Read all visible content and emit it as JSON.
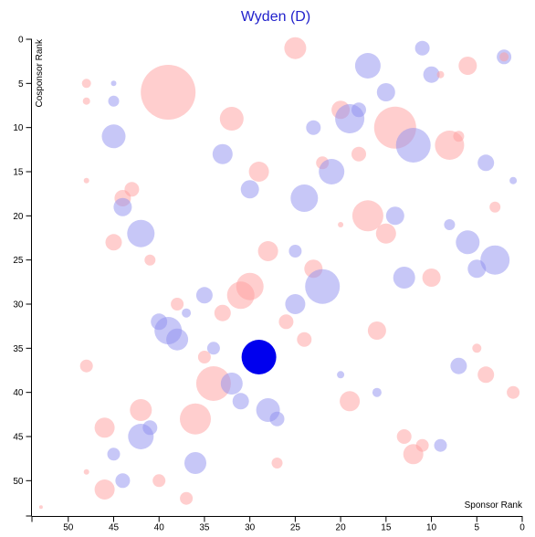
{
  "chart_data": {
    "type": "scatter",
    "title": "Wyden (D)",
    "xlabel": "Sponsor Rank",
    "ylabel": "Cosponsor Rank",
    "xlim": [
      54,
      0
    ],
    "ylim": [
      0,
      54
    ],
    "x_ticks": [
      50,
      45,
      40,
      35,
      30,
      25,
      20,
      15,
      10,
      5,
      0
    ],
    "y_ticks": [
      0,
      5,
      10,
      15,
      20,
      25,
      30,
      35,
      40,
      45,
      50
    ],
    "grid": false,
    "colors": {
      "democrat": "#8f8fef",
      "republican": "#ff9e9e",
      "highlight": "#0000ee",
      "title": "#2222cc"
    },
    "points": [
      {
        "x": 25,
        "y": 1,
        "r": 12,
        "party": "R"
      },
      {
        "x": 11,
        "y": 1,
        "r": 8,
        "party": "D"
      },
      {
        "x": 2,
        "y": 2,
        "r": 8,
        "party": "D"
      },
      {
        "x": 2,
        "y": 2,
        "r": 5,
        "party": "R"
      },
      {
        "x": 17,
        "y": 3,
        "r": 14,
        "party": "D"
      },
      {
        "x": 6,
        "y": 3,
        "r": 10,
        "party": "R"
      },
      {
        "x": 10,
        "y": 4,
        "r": 9,
        "party": "D"
      },
      {
        "x": 9,
        "y": 4,
        "r": 4,
        "party": "R"
      },
      {
        "x": 48,
        "y": 5,
        "r": 5,
        "party": "R"
      },
      {
        "x": 45,
        "y": 5,
        "r": 3,
        "party": "D"
      },
      {
        "x": 39,
        "y": 6,
        "r": 30,
        "party": "R"
      },
      {
        "x": 15,
        "y": 6,
        "r": 10,
        "party": "D"
      },
      {
        "x": 48,
        "y": 7,
        "r": 4,
        "party": "R"
      },
      {
        "x": 45,
        "y": 7,
        "r": 6,
        "party": "D"
      },
      {
        "x": 20,
        "y": 8,
        "r": 10,
        "party": "R"
      },
      {
        "x": 18,
        "y": 8,
        "r": 8,
        "party": "D"
      },
      {
        "x": 32,
        "y": 9,
        "r": 13,
        "party": "R"
      },
      {
        "x": 19,
        "y": 9,
        "r": 16,
        "party": "D"
      },
      {
        "x": 23,
        "y": 10,
        "r": 8,
        "party": "D"
      },
      {
        "x": 14,
        "y": 10,
        "r": 23,
        "party": "R"
      },
      {
        "x": 45,
        "y": 11,
        "r": 13,
        "party": "D"
      },
      {
        "x": 7,
        "y": 11,
        "r": 6,
        "party": "R"
      },
      {
        "x": 12,
        "y": 12,
        "r": 19,
        "party": "D"
      },
      {
        "x": 8,
        "y": 12,
        "r": 16,
        "party": "R"
      },
      {
        "x": 33,
        "y": 13,
        "r": 11,
        "party": "D"
      },
      {
        "x": 18,
        "y": 13,
        "r": 8,
        "party": "R"
      },
      {
        "x": 22,
        "y": 14,
        "r": 7,
        "party": "R"
      },
      {
        "x": 4,
        "y": 14,
        "r": 9,
        "party": "D"
      },
      {
        "x": 29,
        "y": 15,
        "r": 11,
        "party": "R"
      },
      {
        "x": 21,
        "y": 15,
        "r": 14,
        "party": "D"
      },
      {
        "x": 48,
        "y": 16,
        "r": 3,
        "party": "R"
      },
      {
        "x": 1,
        "y": 16,
        "r": 4,
        "party": "D"
      },
      {
        "x": 43,
        "y": 17,
        "r": 8,
        "party": "R"
      },
      {
        "x": 30,
        "y": 17,
        "r": 10,
        "party": "D"
      },
      {
        "x": 44,
        "y": 18,
        "r": 9,
        "party": "R"
      },
      {
        "x": 24,
        "y": 18,
        "r": 15,
        "party": "D"
      },
      {
        "x": 44,
        "y": 19,
        "r": 10,
        "party": "D"
      },
      {
        "x": 3,
        "y": 19,
        "r": 6,
        "party": "R"
      },
      {
        "x": 17,
        "y": 20,
        "r": 17,
        "party": "R"
      },
      {
        "x": 14,
        "y": 20,
        "r": 10,
        "party": "D"
      },
      {
        "x": 20,
        "y": 21,
        "r": 3,
        "party": "R"
      },
      {
        "x": 8,
        "y": 21,
        "r": 6,
        "party": "D"
      },
      {
        "x": 42,
        "y": 22,
        "r": 15,
        "party": "D"
      },
      {
        "x": 15,
        "y": 22,
        "r": 11,
        "party": "R"
      },
      {
        "x": 45,
        "y": 23,
        "r": 9,
        "party": "R"
      },
      {
        "x": 6,
        "y": 23,
        "r": 13,
        "party": "D"
      },
      {
        "x": 28,
        "y": 24,
        "r": 11,
        "party": "R"
      },
      {
        "x": 25,
        "y": 24,
        "r": 7,
        "party": "D"
      },
      {
        "x": 41,
        "y": 25,
        "r": 6,
        "party": "R"
      },
      {
        "x": 3,
        "y": 25,
        "r": 16,
        "party": "D"
      },
      {
        "x": 23,
        "y": 26,
        "r": 10,
        "party": "R"
      },
      {
        "x": 5,
        "y": 26,
        "r": 10,
        "party": "D"
      },
      {
        "x": 13,
        "y": 27,
        "r": 12,
        "party": "D"
      },
      {
        "x": 10,
        "y": 27,
        "r": 10,
        "party": "R"
      },
      {
        "x": 30,
        "y": 28,
        "r": 15,
        "party": "R"
      },
      {
        "x": 22,
        "y": 28,
        "r": 19,
        "party": "D"
      },
      {
        "x": 31,
        "y": 29,
        "r": 15,
        "party": "R"
      },
      {
        "x": 35,
        "y": 29,
        "r": 9,
        "party": "D"
      },
      {
        "x": 38,
        "y": 30,
        "r": 7,
        "party": "R"
      },
      {
        "x": 25,
        "y": 30,
        "r": 11,
        "party": "D"
      },
      {
        "x": 37,
        "y": 31,
        "r": 5,
        "party": "D"
      },
      {
        "x": 33,
        "y": 31,
        "r": 9,
        "party": "R"
      },
      {
        "x": 40,
        "y": 32,
        "r": 9,
        "party": "D"
      },
      {
        "x": 26,
        "y": 32,
        "r": 8,
        "party": "R"
      },
      {
        "x": 39,
        "y": 33,
        "r": 15,
        "party": "D"
      },
      {
        "x": 16,
        "y": 33,
        "r": 10,
        "party": "R"
      },
      {
        "x": 38,
        "y": 34,
        "r": 12,
        "party": "D"
      },
      {
        "x": 24,
        "y": 34,
        "r": 8,
        "party": "R"
      },
      {
        "x": 34,
        "y": 35,
        "r": 7,
        "party": "D"
      },
      {
        "x": 5,
        "y": 35,
        "r": 5,
        "party": "R"
      },
      {
        "x": 35,
        "y": 36,
        "r": 7,
        "party": "R"
      },
      {
        "x": 29,
        "y": 36,
        "r": 19,
        "party": "W"
      },
      {
        "x": 48,
        "y": 37,
        "r": 7,
        "party": "R"
      },
      {
        "x": 7,
        "y": 37,
        "r": 9,
        "party": "D"
      },
      {
        "x": 20,
        "y": 38,
        "r": 4,
        "party": "D"
      },
      {
        "x": 4,
        "y": 38,
        "r": 9,
        "party": "R"
      },
      {
        "x": 34,
        "y": 39,
        "r": 19,
        "party": "R"
      },
      {
        "x": 32,
        "y": 39,
        "r": 12,
        "party": "D"
      },
      {
        "x": 16,
        "y": 40,
        "r": 5,
        "party": "D"
      },
      {
        "x": 1,
        "y": 40,
        "r": 7,
        "party": "R"
      },
      {
        "x": 31,
        "y": 41,
        "r": 9,
        "party": "D"
      },
      {
        "x": 19,
        "y": 41,
        "r": 11,
        "party": "R"
      },
      {
        "x": 42,
        "y": 42,
        "r": 12,
        "party": "R"
      },
      {
        "x": 28,
        "y": 42,
        "r": 13,
        "party": "D"
      },
      {
        "x": 36,
        "y": 43,
        "r": 17,
        "party": "R"
      },
      {
        "x": 27,
        "y": 43,
        "r": 8,
        "party": "D"
      },
      {
        "x": 46,
        "y": 44,
        "r": 11,
        "party": "R"
      },
      {
        "x": 41,
        "y": 44,
        "r": 8,
        "party": "D"
      },
      {
        "x": 42,
        "y": 45,
        "r": 14,
        "party": "D"
      },
      {
        "x": 13,
        "y": 45,
        "r": 8,
        "party": "R"
      },
      {
        "x": 11,
        "y": 46,
        "r": 7,
        "party": "R"
      },
      {
        "x": 9,
        "y": 46,
        "r": 7,
        "party": "D"
      },
      {
        "x": 45,
        "y": 47,
        "r": 7,
        "party": "D"
      },
      {
        "x": 12,
        "y": 47,
        "r": 11,
        "party": "R"
      },
      {
        "x": 27,
        "y": 48,
        "r": 6,
        "party": "R"
      },
      {
        "x": 36,
        "y": 48,
        "r": 12,
        "party": "D"
      },
      {
        "x": 48,
        "y": 49,
        "r": 3,
        "party": "R"
      },
      {
        "x": 40,
        "y": 50,
        "r": 7,
        "party": "R"
      },
      {
        "x": 46,
        "y": 51,
        "r": 11,
        "party": "R"
      },
      {
        "x": 44,
        "y": 50,
        "r": 8,
        "party": "D"
      },
      {
        "x": 37,
        "y": 52,
        "r": 7,
        "party": "R"
      },
      {
        "x": 53,
        "y": 53,
        "r": 2,
        "party": "R"
      }
    ]
  }
}
